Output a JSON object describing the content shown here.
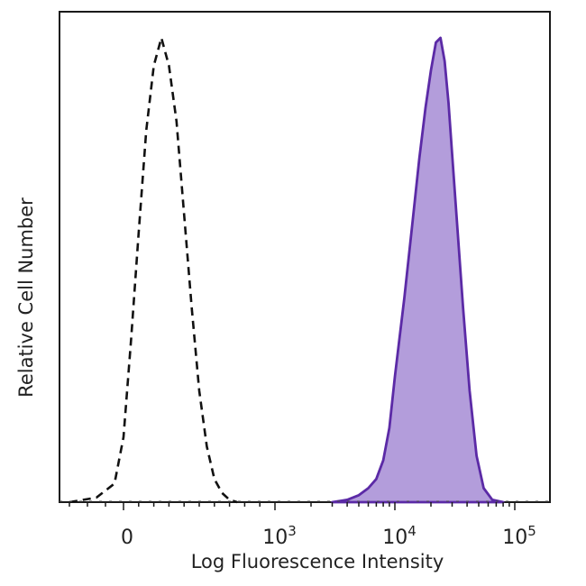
{
  "chart_data": {
    "type": "area",
    "title": "",
    "xlabel": "Log Fluorescence Intensity",
    "ylabel": "Relative Cell Number",
    "x_scale": "biexponential",
    "x_ticks": [
      {
        "value": 0,
        "base": "0",
        "exp": ""
      },
      {
        "value": 1000,
        "base": "10",
        "exp": "3"
      },
      {
        "value": 10000,
        "base": "10",
        "exp": "4"
      },
      {
        "value": 100000,
        "base": "10",
        "exp": "5"
      }
    ],
    "ylim": [
      0,
      100
    ],
    "grid": false,
    "legend": "none",
    "series": [
      {
        "style": "dashed",
        "fill": "none",
        "color": "#111111",
        "x": [
          -300,
          -150,
          -50,
          0,
          50,
          100,
          150,
          200,
          250,
          300,
          350,
          400,
          450,
          500,
          550,
          600,
          650,
          700,
          750
        ],
        "y": [
          0,
          1,
          4,
          14,
          35,
          58,
          80,
          94,
          100,
          94,
          82,
          62,
          42,
          24,
          12,
          5,
          2,
          0.5,
          0
        ]
      },
      {
        "style": "solid",
        "fill": "#b39ddb",
        "color": "#5b2aa6",
        "x": [
          3000,
          4000,
          5000,
          6000,
          7000,
          8000,
          9000,
          10000,
          12000,
          14000,
          16000,
          18000,
          20000,
          22000,
          24000,
          26000,
          28000,
          30000,
          33000,
          37000,
          42000,
          48000,
          55000,
          65000,
          80000
        ],
        "y": [
          0,
          0.5,
          1.5,
          3,
          5,
          9,
          16,
          27,
          44,
          60,
          74,
          85,
          93,
          99,
          100,
          95,
          86,
          75,
          60,
          42,
          24,
          10,
          3,
          0.5,
          0
        ]
      }
    ]
  }
}
